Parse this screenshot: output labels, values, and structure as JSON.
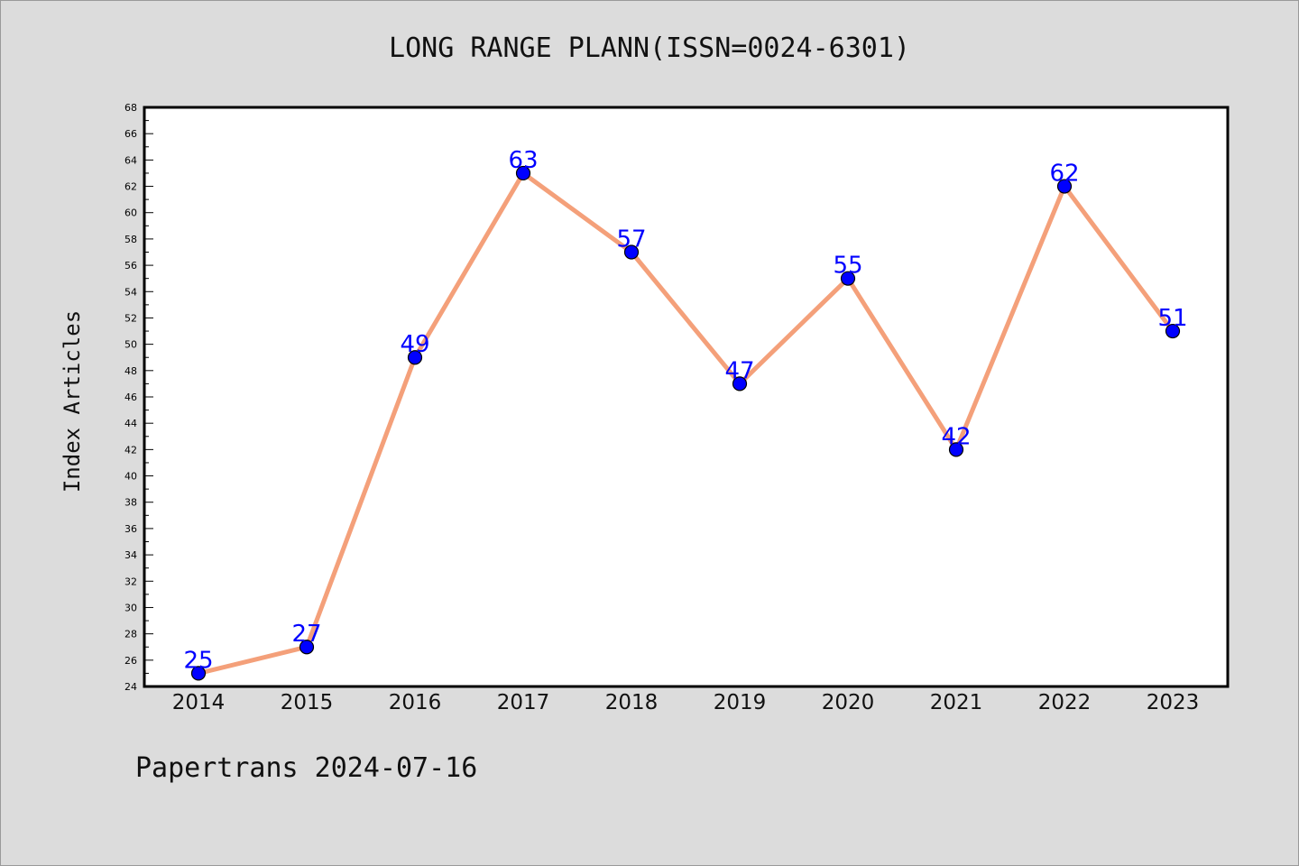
{
  "page": {
    "title": "LONG RANGE PLANN(ISSN=0024-6301)",
    "footer": "Papertrans 2024-07-16"
  },
  "colors": {
    "background": "#dcdcdc",
    "plot_background": "#ffffff",
    "line": "#f4a07a",
    "marker": "#0000ff",
    "data_label": "#0000ff"
  },
  "chart_data": {
    "type": "line",
    "title": "LONG RANGE PLANN(ISSN=0024-6301)",
    "xlabel": "",
    "ylabel": "Index Articles",
    "categories": [
      "2014",
      "2015",
      "2016",
      "2017",
      "2018",
      "2019",
      "2020",
      "2021",
      "2022",
      "2023"
    ],
    "values": [
      25,
      27,
      49,
      63,
      57,
      47,
      55,
      42,
      62,
      51
    ],
    "ylim": [
      24,
      68
    ],
    "y_tick_step": 2,
    "grid": false,
    "legend": "none",
    "data_labels": true
  }
}
